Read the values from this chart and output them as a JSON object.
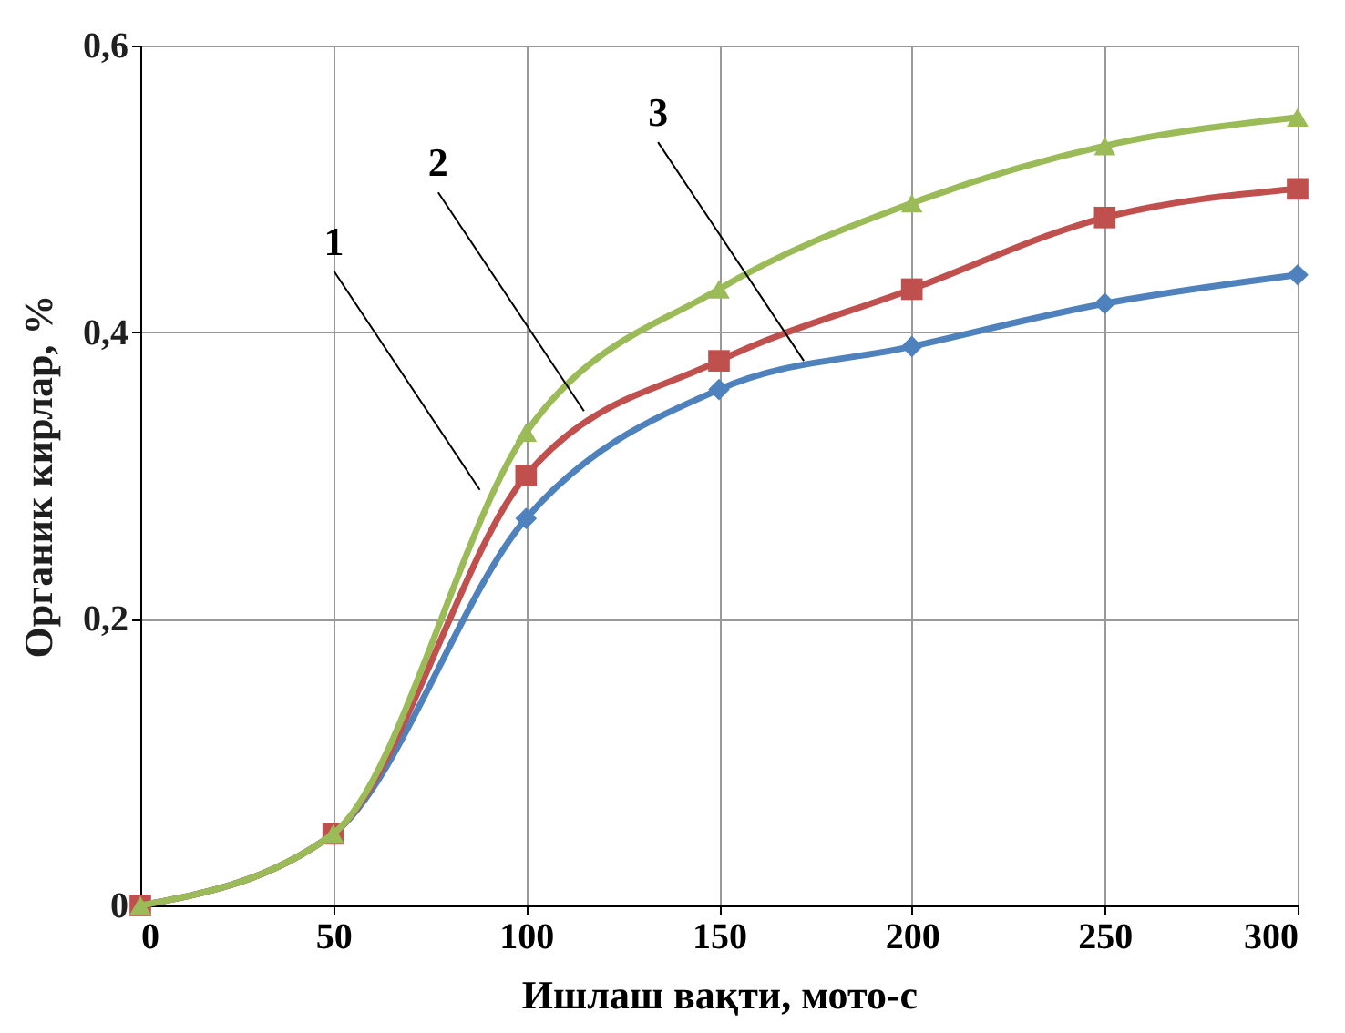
{
  "chart_data": {
    "type": "line",
    "xlabel": "Ишлаш вақти, мото-с",
    "ylabel": "Органик кирлар, %",
    "x": [
      0,
      50,
      100,
      150,
      200,
      250,
      300
    ],
    "series": [
      {
        "color": "#4f81bd",
        "marker": "diamond",
        "values": [
          0,
          0.05,
          0.27,
          0.36,
          0.39,
          0.42,
          0.44
        ]
      },
      {
        "color": "#c0504d",
        "marker": "square",
        "values": [
          0,
          0.05,
          0.3,
          0.38,
          0.43,
          0.48,
          0.5
        ]
      },
      {
        "color": "#9bbb59",
        "marker": "triangle",
        "values": [
          0,
          0.05,
          0.33,
          0.43,
          0.49,
          0.53,
          0.55
        ]
      }
    ],
    "annotations": [
      {
        "text": "1",
        "x": 88,
        "y": 0.29
      },
      {
        "text": "2",
        "x": 115,
        "y": 0.345
      },
      {
        "text": "3",
        "x": 172,
        "y": 0.38
      }
    ],
    "xlim": [
      0,
      300
    ],
    "xticks": [
      0,
      50,
      100,
      150,
      200,
      250,
      300
    ],
    "ylim": [
      0,
      0.6
    ],
    "yticks": [
      0,
      {
        "value": 0.2,
        "label": "0,2"
      },
      {
        "value": 0.4,
        "label": "0,4"
      },
      {
        "value": 0.6,
        "label": "0,6"
      }
    ],
    "grid": true,
    "line_style": "solid"
  }
}
